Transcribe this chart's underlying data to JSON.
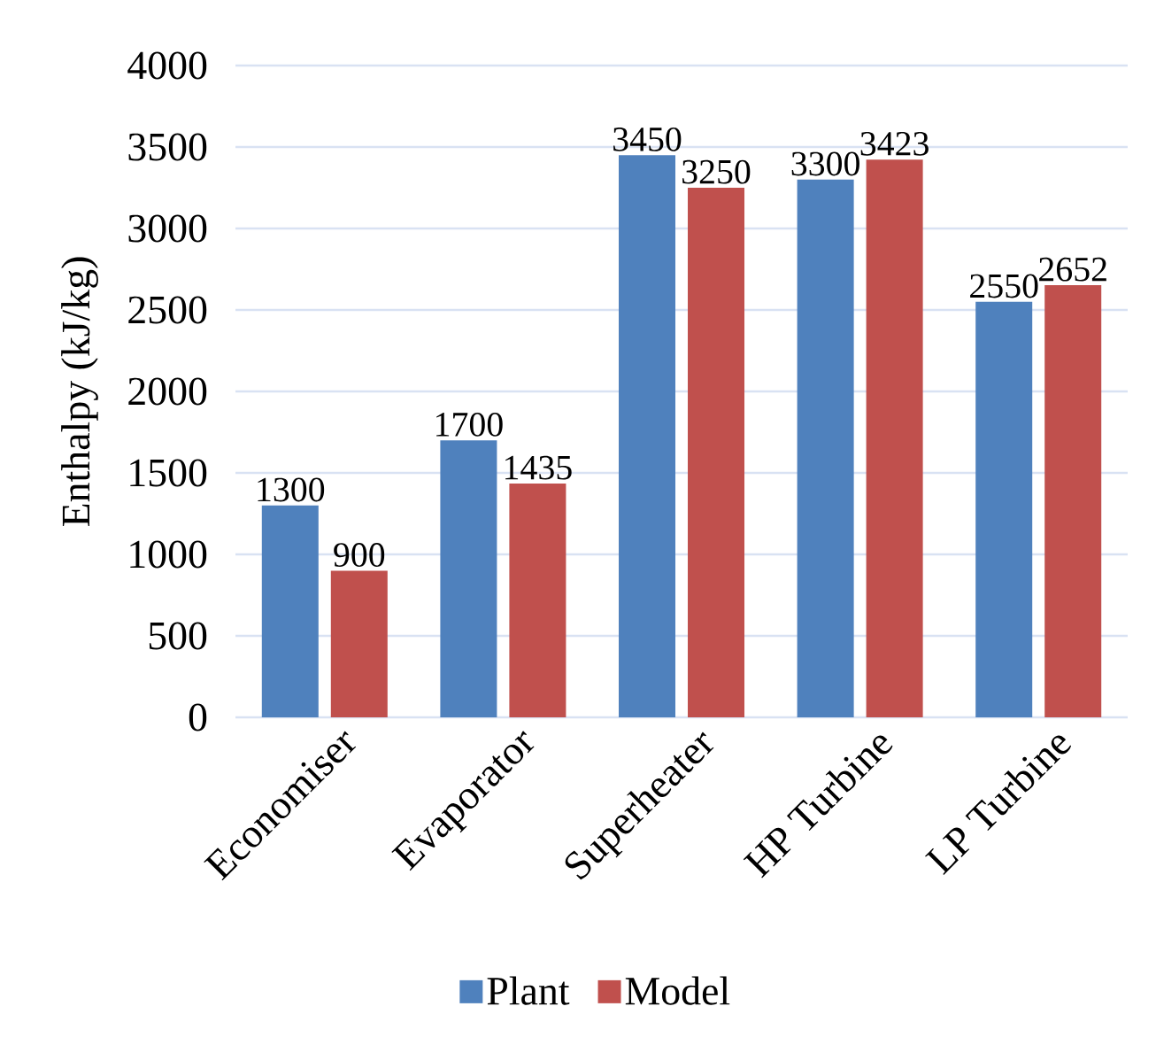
{
  "chart_data": {
    "type": "bar",
    "ylabel": "Enthalpy (kJ/kg)",
    "categories": [
      "Economiser",
      "Evaporator",
      "Superheater",
      "HP Turbine",
      "LP Turbine"
    ],
    "series": [
      {
        "name": "Plant",
        "color": "#4f81bd",
        "values": [
          1300,
          1700,
          3450,
          3300,
          2550
        ]
      },
      {
        "name": "Model",
        "color": "#c0504d",
        "values": [
          900,
          1435,
          3250,
          3423,
          2652
        ]
      }
    ],
    "ylim": [
      0,
      4000
    ],
    "yticks": [
      0,
      500,
      1000,
      1500,
      2000,
      2500,
      3000,
      3500,
      4000
    ],
    "grid": "y",
    "legend": "bottom",
    "data_labels": true
  }
}
